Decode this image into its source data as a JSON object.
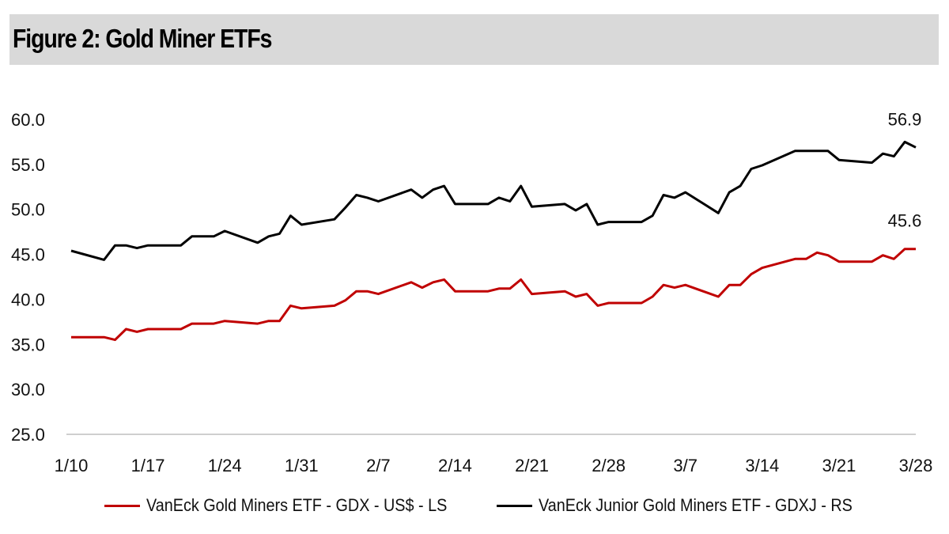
{
  "title": "Figure 2: Gold Miner ETFs",
  "chart_data": {
    "type": "line",
    "x": [
      "1/10",
      "1/11",
      "1/12",
      "1/13",
      "1/14",
      "1/15",
      "1/16",
      "1/17",
      "1/18",
      "1/19",
      "1/20",
      "1/21",
      "1/22",
      "1/23",
      "1/24",
      "1/25",
      "1/26",
      "1/27",
      "1/28",
      "1/29",
      "1/30",
      "1/31",
      "2/1",
      "2/2",
      "2/3",
      "2/4",
      "2/5",
      "2/6",
      "2/7",
      "2/8",
      "2/9",
      "2/10",
      "2/11",
      "2/12",
      "2/13",
      "2/14",
      "2/15",
      "2/16",
      "2/17",
      "2/18",
      "2/19",
      "2/20",
      "2/21",
      "2/22",
      "2/23",
      "2/24",
      "2/25",
      "2/26",
      "2/27",
      "2/28",
      "3/1",
      "3/2",
      "3/3",
      "3/4",
      "3/5",
      "3/6",
      "3/7",
      "3/8",
      "3/9",
      "3/10",
      "3/11",
      "3/12",
      "3/13",
      "3/14",
      "3/15",
      "3/16",
      "3/17",
      "3/18",
      "3/19",
      "3/20",
      "3/21",
      "3/22",
      "3/23",
      "3/24",
      "3/25",
      "3/26",
      "3/27",
      "3/28"
    ],
    "x_tick_labels": [
      "1/10",
      "1/17",
      "1/24",
      "1/31",
      "2/7",
      "2/14",
      "2/21",
      "2/28",
      "3/7",
      "3/14",
      "3/21",
      "3/28"
    ],
    "y_ticks": [
      "25.0",
      "30.0",
      "35.0",
      "40.0",
      "45.0",
      "50.0",
      "55.0",
      "60.0"
    ],
    "ylim": [
      25,
      60
    ],
    "series": [
      {
        "name": "VanEck Gold Miners ETF  - GDX  - US$ - LS",
        "color": "#c00000",
        "points": [
          {
            "x": "1/10",
            "y": 35.8
          },
          {
            "x": "1/13",
            "y": 35.8
          },
          {
            "x": "1/14",
            "y": 35.5
          },
          {
            "x": "1/15",
            "y": 36.7
          },
          {
            "x": "1/16",
            "y": 36.4
          },
          {
            "x": "1/17",
            "y": 36.7
          },
          {
            "x": "1/20",
            "y": 36.7
          },
          {
            "x": "1/21",
            "y": 37.3
          },
          {
            "x": "1/22",
            "y": 37.3
          },
          {
            "x": "1/23",
            "y": 37.3
          },
          {
            "x": "1/24",
            "y": 37.6
          },
          {
            "x": "1/27",
            "y": 37.3
          },
          {
            "x": "1/28",
            "y": 37.6
          },
          {
            "x": "1/29",
            "y": 37.6
          },
          {
            "x": "1/30",
            "y": 39.3
          },
          {
            "x": "1/31",
            "y": 39.0
          },
          {
            "x": "2/3",
            "y": 39.3
          },
          {
            "x": "2/4",
            "y": 39.9
          },
          {
            "x": "2/5",
            "y": 40.9
          },
          {
            "x": "2/6",
            "y": 40.9
          },
          {
            "x": "2/7",
            "y": 40.6
          },
          {
            "x": "2/10",
            "y": 41.9
          },
          {
            "x": "2/11",
            "y": 41.3
          },
          {
            "x": "2/12",
            "y": 41.9
          },
          {
            "x": "2/13",
            "y": 42.2
          },
          {
            "x": "2/14",
            "y": 40.9
          },
          {
            "x": "2/17",
            "y": 40.9
          },
          {
            "x": "2/18",
            "y": 41.2
          },
          {
            "x": "2/19",
            "y": 41.2
          },
          {
            "x": "2/20",
            "y": 42.2
          },
          {
            "x": "2/21",
            "y": 40.6
          },
          {
            "x": "2/24",
            "y": 40.9
          },
          {
            "x": "2/25",
            "y": 40.3
          },
          {
            "x": "2/26",
            "y": 40.6
          },
          {
            "x": "2/27",
            "y": 39.3
          },
          {
            "x": "2/28",
            "y": 39.6
          },
          {
            "x": "3/3",
            "y": 39.6
          },
          {
            "x": "3/4",
            "y": 40.3
          },
          {
            "x": "3/5",
            "y": 41.6
          },
          {
            "x": "3/6",
            "y": 41.3
          },
          {
            "x": "3/7",
            "y": 41.6
          },
          {
            "x": "3/10",
            "y": 40.3
          },
          {
            "x": "3/11",
            "y": 41.6
          },
          {
            "x": "3/12",
            "y": 41.6
          },
          {
            "x": "3/13",
            "y": 42.8
          },
          {
            "x": "3/14",
            "y": 43.5
          },
          {
            "x": "3/17",
            "y": 44.5
          },
          {
            "x": "3/18",
            "y": 44.5
          },
          {
            "x": "3/19",
            "y": 45.2
          },
          {
            "x": "3/20",
            "y": 44.9
          },
          {
            "x": "3/21",
            "y": 44.2
          },
          {
            "x": "3/24",
            "y": 44.2
          },
          {
            "x": "3/25",
            "y": 44.9
          },
          {
            "x": "3/26",
            "y": 44.5
          },
          {
            "x": "3/27",
            "y": 45.6
          },
          {
            "x": "3/28",
            "y": 45.6
          }
        ],
        "end_label": "45.6"
      },
      {
        "name": "VanEck Junior Gold Miners ETF - GDXJ - RS",
        "color": "#000000",
        "points": [
          {
            "x": "1/10",
            "y": 45.4
          },
          {
            "x": "1/13",
            "y": 44.4
          },
          {
            "x": "1/14",
            "y": 46.0
          },
          {
            "x": "1/15",
            "y": 46.0
          },
          {
            "x": "1/16",
            "y": 45.7
          },
          {
            "x": "1/17",
            "y": 46.0
          },
          {
            "x": "1/20",
            "y": 46.0
          },
          {
            "x": "1/21",
            "y": 47.0
          },
          {
            "x": "1/22",
            "y": 47.0
          },
          {
            "x": "1/23",
            "y": 47.0
          },
          {
            "x": "1/24",
            "y": 47.6
          },
          {
            "x": "1/27",
            "y": 46.3
          },
          {
            "x": "1/28",
            "y": 47.0
          },
          {
            "x": "1/29",
            "y": 47.3
          },
          {
            "x": "1/30",
            "y": 49.3
          },
          {
            "x": "1/31",
            "y": 48.3
          },
          {
            "x": "2/3",
            "y": 48.9
          },
          {
            "x": "2/4",
            "y": 50.2
          },
          {
            "x": "2/5",
            "y": 51.6
          },
          {
            "x": "2/6",
            "y": 51.3
          },
          {
            "x": "2/7",
            "y": 50.9
          },
          {
            "x": "2/10",
            "y": 52.2
          },
          {
            "x": "2/11",
            "y": 51.3
          },
          {
            "x": "2/12",
            "y": 52.2
          },
          {
            "x": "2/13",
            "y": 52.6
          },
          {
            "x": "2/14",
            "y": 50.6
          },
          {
            "x": "2/17",
            "y": 50.6
          },
          {
            "x": "2/18",
            "y": 51.3
          },
          {
            "x": "2/19",
            "y": 50.9
          },
          {
            "x": "2/20",
            "y": 52.6
          },
          {
            "x": "2/21",
            "y": 50.3
          },
          {
            "x": "2/24",
            "y": 50.6
          },
          {
            "x": "2/25",
            "y": 49.9
          },
          {
            "x": "2/26",
            "y": 50.6
          },
          {
            "x": "2/27",
            "y": 48.3
          },
          {
            "x": "2/28",
            "y": 48.6
          },
          {
            "x": "3/3",
            "y": 48.6
          },
          {
            "x": "3/4",
            "y": 49.3
          },
          {
            "x": "3/5",
            "y": 51.6
          },
          {
            "x": "3/6",
            "y": 51.3
          },
          {
            "x": "3/7",
            "y": 51.9
          },
          {
            "x": "3/10",
            "y": 49.6
          },
          {
            "x": "3/11",
            "y": 51.9
          },
          {
            "x": "3/12",
            "y": 52.6
          },
          {
            "x": "3/13",
            "y": 54.5
          },
          {
            "x": "3/14",
            "y": 54.9
          },
          {
            "x": "3/17",
            "y": 56.5
          },
          {
            "x": "3/18",
            "y": 56.5
          },
          {
            "x": "3/19",
            "y": 56.5
          },
          {
            "x": "3/20",
            "y": 56.5
          },
          {
            "x": "3/21",
            "y": 55.5
          },
          {
            "x": "3/24",
            "y": 55.2
          },
          {
            "x": "3/25",
            "y": 56.2
          },
          {
            "x": "3/26",
            "y": 55.9
          },
          {
            "x": "3/27",
            "y": 57.5
          },
          {
            "x": "3/28",
            "y": 56.9
          }
        ],
        "end_label": "56.9"
      }
    ]
  }
}
